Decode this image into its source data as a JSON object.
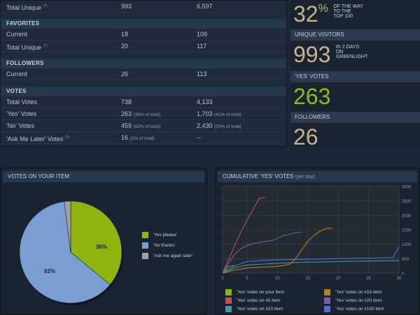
{
  "stats": {
    "top_rows": [
      {
        "label": "Total Unique",
        "q": "(?)",
        "v1": "993",
        "v2": "6,597"
      }
    ],
    "favorites": {
      "header": "FAVORITES",
      "rows": [
        {
          "label": "Current",
          "q": "",
          "v1": "18",
          "v2": "109"
        },
        {
          "label": "Total Unique",
          "q": "(?)",
          "v1": "20",
          "v2": "117"
        }
      ]
    },
    "followers": {
      "header": "FOLLOWERS",
      "rows": [
        {
          "label": "Current",
          "q": "",
          "v1": "26",
          "v2": "113"
        }
      ]
    },
    "votes": {
      "header": "VOTES",
      "rows": [
        {
          "label": "Total Votes",
          "q": "",
          "v1": "738",
          "n1": "",
          "v2": "4,133",
          "n2": ""
        },
        {
          "label": "'Yes' Votes",
          "q": "",
          "v1": "263",
          "n1": "(36% of total)",
          "v2": "1,703",
          "n2": "(41% of total)"
        },
        {
          "label": "'No' Votes",
          "q": "",
          "v1": "459",
          "n1": "(62% of total)",
          "v2": "2,430",
          "n2": "(59% of total)"
        },
        {
          "label": "'Ask Me Later' Votes",
          "q": "(?)",
          "v1": "16",
          "n1": "(2% of total)",
          "v2": "--",
          "n2": ""
        }
      ]
    }
  },
  "side": {
    "pct": "32",
    "pct_sign": "%",
    "pct_sub": [
      "OF THE WAY",
      "TO THE",
      "TOP 100"
    ],
    "uv_header": "UNIQUE VISITORS",
    "uv_value": "993",
    "uv_sub": [
      "IN 2 DAYS",
      "ON",
      "GREENLIGHT"
    ],
    "yes_header": "'YES' VOTES",
    "yes_value": "263",
    "fol_header": "FOLLOWERS",
    "fol_value": "26"
  },
  "pie": {
    "title": "VOTES ON YOUR ITEM",
    "legend": [
      {
        "label": "'Yes please'",
        "color": "#8fb30f"
      },
      {
        "label": "'No thanks'",
        "color": "#7b9ed2"
      },
      {
        "label": "'Ask me again later'",
        "color": "#a2a2a2"
      }
    ],
    "labels": {
      "yes": "36%",
      "no": "62%"
    }
  },
  "cum": {
    "title": "CUMULATIVE 'YES' VOTES",
    "title_note": "(per day)",
    "legend": [
      {
        "label": "'Yes' votes on your item",
        "color": "#8fb30f"
      },
      {
        "label": "'Yes' votes on #15 item",
        "color": "#c07a1e"
      },
      {
        "label": "'Yes' votes on #5 item",
        "color": "#b95555"
      },
      {
        "label": "'Yes' votes on #20 item",
        "color": "#7b5ea8"
      },
      {
        "label": "'Yes' votes on #10 item",
        "color": "#3a9ba6"
      },
      {
        "label": "'Yes' votes on #100 item",
        "color": "#5a6ad8"
      }
    ]
  },
  "chart_data": {
    "type": "line",
    "title": "CUMULATIVE 'YES' VOTES",
    "subtitle": "(per day)",
    "xlim": [
      1,
      30
    ],
    "ylim": [
      0,
      3000
    ],
    "x_ticks": [
      "1",
      "5",
      "10",
      "15",
      "20",
      "25",
      "30"
    ],
    "y_ticks": [
      "0",
      "500",
      "1000",
      "1500",
      "2000",
      "2500",
      "3000"
    ],
    "grid": true,
    "series": [
      {
        "name": "'Yes' votes on your item",
        "color": "#8fb30f",
        "x": [
          1,
          2,
          3
        ],
        "values": [
          0,
          230,
          263
        ]
      },
      {
        "name": "'Yes' votes on #5 item",
        "color": "#b95555",
        "x": [
          1,
          2,
          3,
          4,
          5,
          6,
          7,
          8
        ],
        "values": [
          0,
          480,
          960,
          1420,
          1820,
          2200,
          2580,
          2630
        ]
      },
      {
        "name": "'Yes' votes on #10 item",
        "color": "#3a9ba6",
        "x": [
          1,
          3,
          5,
          10,
          15,
          20,
          25,
          30
        ],
        "values": [
          0,
          180,
          280,
          340,
          380,
          400,
          420,
          430
        ]
      },
      {
        "name": "'Yes' votes on #15 item",
        "color": "#c07a1e",
        "x": [
          1,
          3,
          5,
          8,
          10,
          12,
          13,
          14,
          15,
          16,
          17,
          18,
          19
        ],
        "values": [
          0,
          100,
          180,
          210,
          230,
          300,
          500,
          800,
          1100,
          1300,
          1450,
          1540,
          1560
        ]
      },
      {
        "name": "'Yes' votes on #20 item",
        "color": "#7b5ea8",
        "x": [
          1,
          2,
          3,
          4,
          5,
          6,
          7,
          8,
          9,
          10,
          11,
          12,
          13,
          14
        ],
        "values": [
          0,
          350,
          650,
          850,
          950,
          1020,
          1060,
          1100,
          1120,
          1200,
          1300,
          1340,
          1400,
          1420
        ]
      },
      {
        "name": "'Yes' votes on #100 item",
        "color": "#5a6ad8",
        "x": [
          1,
          3,
          5,
          8,
          10,
          15,
          20,
          25,
          29,
          30
        ],
        "values": [
          0,
          250,
          400,
          440,
          460,
          480,
          500,
          520,
          540,
          900
        ]
      }
    ]
  },
  "pie_data": {
    "type": "pie",
    "slices": [
      {
        "label": "'Yes please'",
        "value": 36,
        "color": "#8fb30f"
      },
      {
        "label": "'No thanks'",
        "value": 62,
        "color": "#7b9ed2"
      },
      {
        "label": "'Ask me again later'",
        "value": 2,
        "color": "#a2a2a2"
      }
    ]
  }
}
